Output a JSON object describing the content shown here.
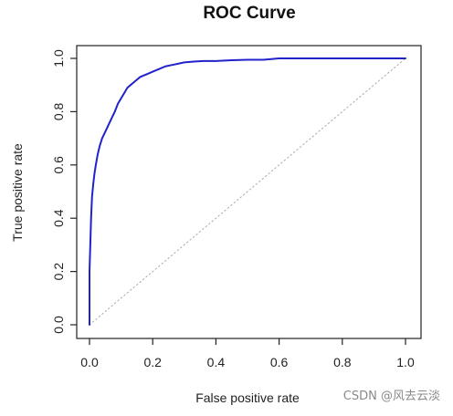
{
  "chart_data": {
    "type": "line",
    "title": "ROC Curve",
    "xlabel": "False positive rate",
    "ylabel": "True positive rate",
    "xlim": [
      0.0,
      1.0
    ],
    "ylim": [
      0.0,
      1.0
    ],
    "x_ticks": [
      "0.0",
      "0.2",
      "0.4",
      "0.6",
      "0.8",
      "1.0"
    ],
    "y_ticks": [
      "0.0",
      "0.2",
      "0.4",
      "0.6",
      "0.8",
      "1.0"
    ],
    "grid": false,
    "legend": "none",
    "series": [
      {
        "color": "#2222cc",
        "style": "solid",
        "x": [
          0.0,
          0.0,
          0.003,
          0.005,
          0.008,
          0.012,
          0.016,
          0.02,
          0.026,
          0.032,
          0.04,
          0.048,
          0.056,
          0.064,
          0.072,
          0.08,
          0.09,
          0.1,
          0.11,
          0.12,
          0.13,
          0.14,
          0.15,
          0.16,
          0.17,
          0.18,
          0.19,
          0.2,
          0.22,
          0.24,
          0.26,
          0.28,
          0.3,
          0.33,
          0.36,
          0.4,
          0.45,
          0.5,
          0.55,
          0.6,
          0.7,
          0.8,
          0.9,
          1.0
        ],
        "y": [
          0.0,
          0.2,
          0.32,
          0.4,
          0.48,
          0.53,
          0.57,
          0.6,
          0.64,
          0.67,
          0.7,
          0.72,
          0.74,
          0.76,
          0.78,
          0.8,
          0.83,
          0.85,
          0.87,
          0.89,
          0.9,
          0.91,
          0.92,
          0.93,
          0.935,
          0.94,
          0.945,
          0.95,
          0.96,
          0.97,
          0.975,
          0.98,
          0.985,
          0.988,
          0.99,
          0.99,
          0.993,
          0.995,
          0.995,
          1.0,
          1.0,
          1.0,
          1.0,
          1.0
        ]
      },
      {
        "color": "#aaaaaa",
        "style": "dotted",
        "x": [
          0.0,
          1.0
        ],
        "y": [
          0.0,
          1.0
        ]
      }
    ]
  },
  "watermark": "CSDN @风去云淡"
}
